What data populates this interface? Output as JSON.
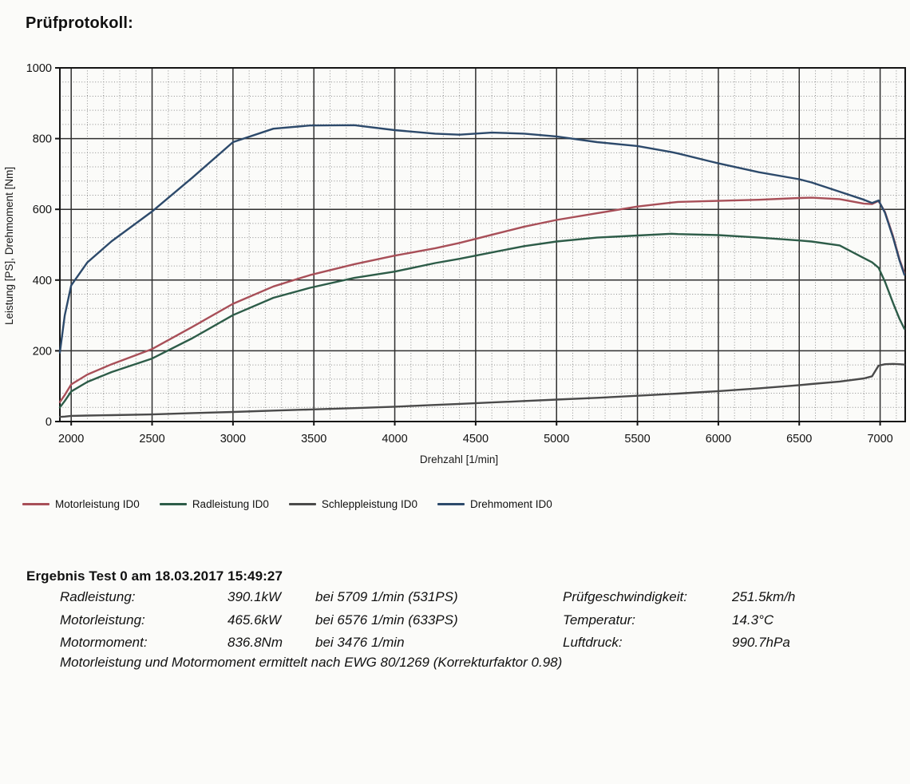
{
  "page": {
    "title": "Prüfprotokoll:"
  },
  "chart_data": {
    "type": "line",
    "title": "",
    "xlabel": "Drehzahl [1/min]",
    "ylabel": "Leistung [PS], Drehmoment [Nm]",
    "xlim": [
      1930,
      7155
    ],
    "ylim": [
      0,
      1000
    ],
    "x_major_ticks": [
      2000,
      2500,
      3000,
      3500,
      4000,
      4500,
      5000,
      5500,
      6000,
      6500,
      7000
    ],
    "x_minor_step": 100,
    "y_major_ticks": [
      0,
      200,
      400,
      600,
      800,
      1000
    ],
    "y_minor_step": 40,
    "grid": "major-solid-minor-dotted",
    "legend_position": "below",
    "x": [
      1930,
      1960,
      2000,
      2100,
      2250,
      2500,
      2750,
      3000,
      3250,
      3476,
      3750,
      4000,
      4250,
      4400,
      4600,
      4800,
      5000,
      5250,
      5500,
      5709,
      5750,
      6000,
      6250,
      6500,
      6576,
      6750,
      6900,
      6950,
      6990,
      7030,
      7080,
      7120,
      7150
    ],
    "series": [
      {
        "name": "Motorleistung ID0",
        "unit": "PS",
        "color": "#a84f58",
        "values": [
          55,
          75,
          105,
          133,
          162,
          205,
          268,
          333,
          382,
          414,
          445,
          469,
          490,
          505,
          528,
          551,
          570,
          589,
          608,
          619,
          621,
          624,
          627,
          632,
          633,
          629,
          616,
          615,
          624,
          592,
          524,
          458,
          420
        ]
      },
      {
        "name": "Radleistung ID0",
        "unit": "PS",
        "color": "#2d5c48",
        "values": [
          40,
          58,
          85,
          112,
          140,
          178,
          236,
          301,
          350,
          378,
          406,
          424,
          448,
          460,
          478,
          496,
          509,
          520,
          526,
          531,
          530,
          527,
          520,
          512,
          509,
          498,
          462,
          450,
          435,
          395,
          335,
          290,
          262
        ]
      },
      {
        "name": "Schleppleistung ID0",
        "unit": "PS",
        "color": "#4a4a4a",
        "values": [
          13,
          14,
          16,
          17,
          18,
          20,
          24,
          27,
          31,
          34,
          38,
          42,
          47,
          50,
          54,
          58,
          62,
          67,
          73,
          78,
          79,
          86,
          94,
          103,
          106,
          113,
          122,
          128,
          158,
          162,
          163,
          162,
          161
        ]
      },
      {
        "name": "Drehmoment ID0",
        "unit": "Nm",
        "color": "#2d4a6b",
        "values": [
          195,
          300,
          385,
          450,
          510,
          594,
          690,
          790,
          828,
          837,
          838,
          824,
          814,
          811,
          817,
          814,
          806,
          790,
          779,
          762,
          758,
          730,
          705,
          685,
          676,
          650,
          627,
          618,
          625,
          590,
          520,
          455,
          415
        ]
      }
    ],
    "annotations": {
      "peak_power": "633PS bei 6576 1/min",
      "peak_torque": "836.8Nm bei 3476 1/min",
      "peak_wheel_power": "531PS bei 5709 1/min"
    }
  },
  "results": {
    "heading": "Ergebnis Test 0 am 18.03.2017 15:49:27",
    "rows": [
      {
        "label": "Radleistung:",
        "value": "390.1kW",
        "condition": "bei 5709 1/min (531PS)",
        "label2": "Prüfgeschwindigkeit:",
        "value2": "251.5km/h"
      },
      {
        "label": "Motorleistung:",
        "value": "465.6kW",
        "condition": "bei 6576 1/min (633PS)",
        "label2": "Temperatur:",
        "value2": "14.3°C"
      },
      {
        "label": "Motormoment:",
        "value": "836.8Nm",
        "condition": "bei 3476 1/min",
        "label2": "Luftdruck:",
        "value2": "990.7hPa"
      }
    ],
    "footnote": "Motorleistung und Motormoment ermittelt nach EWG 80/1269 (Korrekturfaktor 0.98)"
  }
}
